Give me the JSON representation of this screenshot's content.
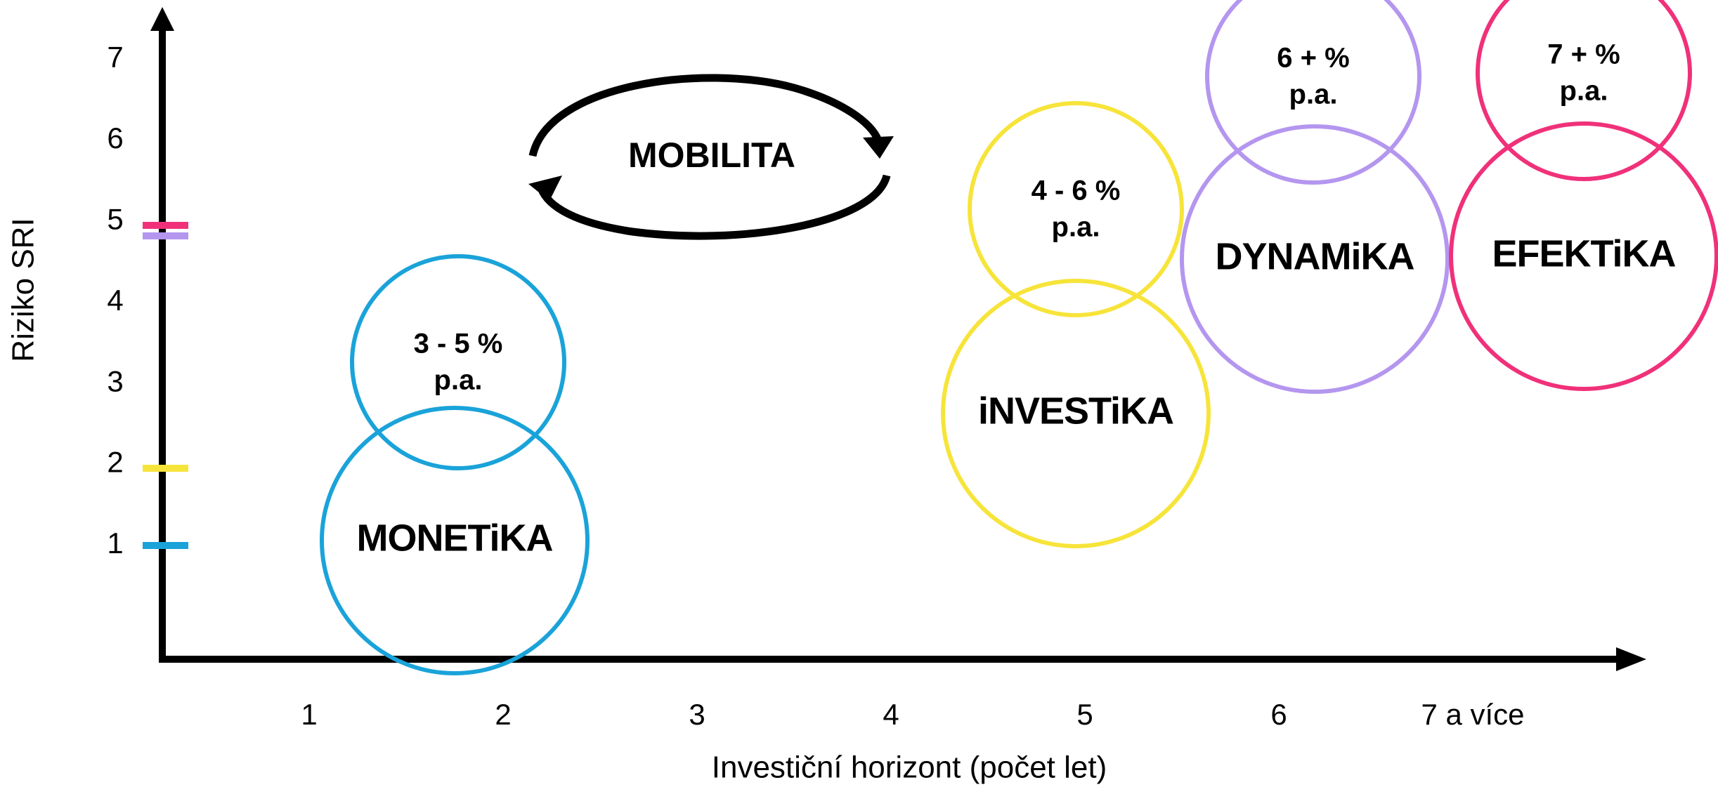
{
  "y_axis": {
    "label": "Riziko SRI",
    "ticks": [
      1,
      2,
      3,
      4,
      5,
      6,
      7
    ]
  },
  "x_axis": {
    "label": "Investiční horizont (počet let)",
    "ticks": [
      1,
      2,
      3,
      4,
      5,
      6,
      "7 a více"
    ]
  },
  "mobility": "MOBILITA",
  "funds": [
    {
      "name": "MONETiKA",
      "return": [
        "3 - 5 %",
        "p.a."
      ],
      "color": "#1aa3d9"
    },
    {
      "name": "iNVESTiKA",
      "return": [
        "4 - 6 %",
        "p.a."
      ],
      "color": "#f7e43a"
    },
    {
      "name": "DYNAMiKA",
      "return": [
        "6 + %",
        "p.a."
      ],
      "color": "#b496ef"
    },
    {
      "name": "EFEKTiKA",
      "return": [
        "7 + %",
        "p.a."
      ],
      "color": "#f0317a"
    }
  ]
}
